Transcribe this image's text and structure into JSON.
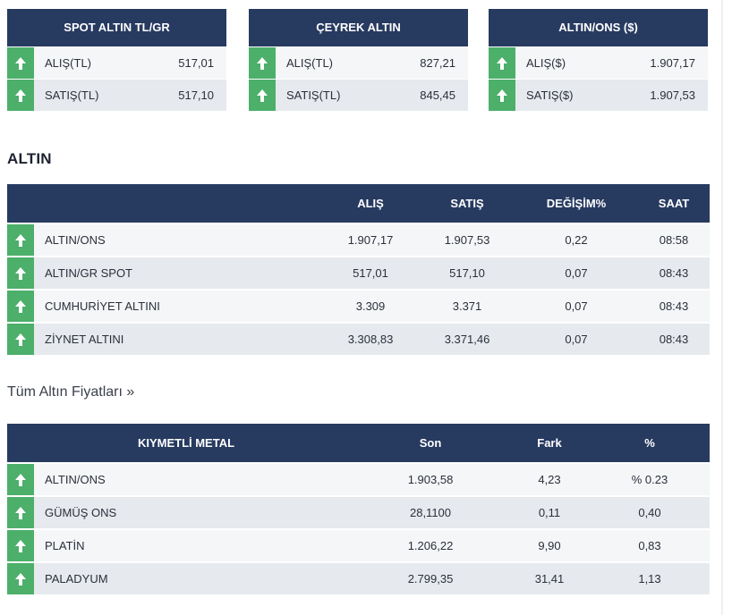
{
  "cards": [
    {
      "title": "SPOT ALTIN TL/GR",
      "rows": [
        {
          "label": "ALIŞ(TL)",
          "value": "517,01",
          "trend_icon": "arrow-up-icon"
        },
        {
          "label": "SATIŞ(TL)",
          "value": "517,10",
          "trend_icon": "arrow-up-icon"
        }
      ]
    },
    {
      "title": "ÇEYREK ALTIN",
      "rows": [
        {
          "label": "ALIŞ(TL)",
          "value": "827,21",
          "trend_icon": "arrow-up-icon"
        },
        {
          "label": "SATIŞ(TL)",
          "value": "845,45",
          "trend_icon": "arrow-up-icon"
        }
      ]
    },
    {
      "title": "ALTIN/ONS ($)",
      "rows": [
        {
          "label": "ALIŞ($)",
          "value": "1.907,17",
          "trend_icon": "arrow-up-icon"
        },
        {
          "label": "SATIŞ($)",
          "value": "1.907,53",
          "trend_icon": "arrow-up-icon"
        }
      ]
    }
  ],
  "altin": {
    "title": "ALTIN",
    "headers": {
      "alis": "ALIŞ",
      "satis": "SATIŞ",
      "degisim": "DEĞİŞİM%",
      "saat": "SAAT"
    },
    "rows": [
      {
        "name": "ALTIN/ONS",
        "alis": "1.907,17",
        "satis": "1.907,53",
        "degisim": "0,22",
        "saat": "08:58"
      },
      {
        "name": "ALTIN/GR SPOT",
        "alis": "517,01",
        "satis": "517,10",
        "degisim": "0,07",
        "saat": "08:43"
      },
      {
        "name": "CUMHURİYET ALTINI",
        "alis": "3.309",
        "satis": "3.371",
        "degisim": "0,07",
        "saat": "08:43"
      },
      {
        "name": "ZİYNET ALTINI",
        "alis": "3.308,83",
        "satis": "3.371,46",
        "degisim": "0,07",
        "saat": "08:43"
      }
    ]
  },
  "all_prices_link": "Tüm Altın Fiyatları »",
  "metal": {
    "headers": {
      "name": "KIYMETLİ METAL",
      "son": "Son",
      "fark": "Fark",
      "yuzde": "%"
    },
    "rows": [
      {
        "name": "ALTIN/ONS",
        "son": "1.903,58",
        "fark": "4,23",
        "yuzde": "% 0.23"
      },
      {
        "name": "GÜMÜŞ ONS",
        "son": "28,1100",
        "fark": "0,11",
        "yuzde": "0,40"
      },
      {
        "name": "PLATİN",
        "son": "1.206,22",
        "fark": "9,90",
        "yuzde": "0,83"
      },
      {
        "name": "PALADYUM",
        "son": "2.799,35",
        "fark": "31,41",
        "yuzde": "1,13"
      }
    ]
  },
  "colors": {
    "header_navy": "#273a60",
    "up_green": "#4caf6a",
    "row_light": "#f4f6f8",
    "row_dark": "#e6e9ee"
  }
}
